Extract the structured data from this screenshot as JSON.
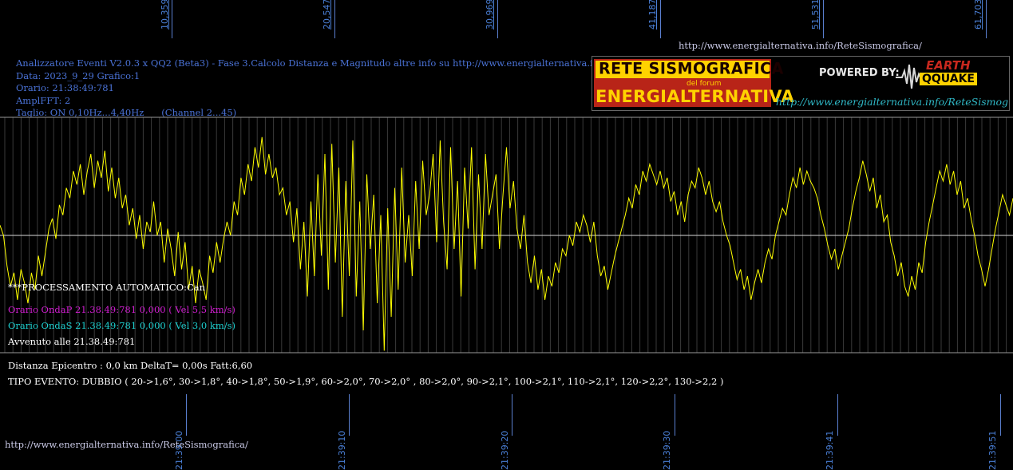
{
  "header": {
    "url_top": "http://www.energialternativa.info/ReteSismografica/",
    "info_lines": [
      "Analizzatore Eventi V2.0.3 x QQ2 (Beta3) - Fase 3.Calcolo Distanza e Magnitudo altre info su http://www.energialternativa.info/ReteSism",
      "Data: 2023_9_29 Grafico:1",
      "Orario: 21:38:49:781",
      "AmplFFT: 2",
      "Taglio: ON 0,10Hz...4,40Hz      (Channel 2...45)"
    ]
  },
  "logo": {
    "line1": "RETE SISMOGRAFICA",
    "line2": "del forum",
    "line3": "ENERGIALTERNATIVA",
    "powered": "POWERED BY:",
    "brand_top": "EARTH",
    "brand_bottom": "QQUAKE",
    "url": "http://www.energialternativa.info/ReteSismografica"
  },
  "processing": {
    "title": "***PROCESSAMENTO AUTOMATICO:Can",
    "onda_p": "Orario OndaP 21.38.49:781  0,000 ( Vel 5,5 km/s)",
    "onda_s": "Orario OndaS 21.38.49:781  0,000 ( Vel 3,0 km/s)",
    "avvenuto": "Avvenuto alle 21.38.49:781",
    "distanza": "Distanza Epicentro : 0,0 km DeltaT= 0,00s  Fatt:6,60",
    "tipo": "TIPO EVENTO: DUBBIO ( 20->1,6°, 30->1,8°, 40->1,8°, 50->1,9°, 60->2,0°, 70->2,0° , 80->2,0°, 90->2,1°, 100->2,1°, 110->2,1°, 120->2,2°, 130->2,2 )"
  },
  "footer_url": "http://www.energialternativa.info/ReteSismografica/",
  "colors": {
    "background": "#000000",
    "trace": "#ffff00",
    "grid": "#7f7f7f",
    "info_text": "#4a72d6",
    "onda_p": "#d21ed2",
    "onda_s": "#1ecfcf",
    "logo_red": "#c8281e",
    "logo_yellow": "#ffd200",
    "logo_url": "#2fb8c6"
  },
  "chart_data": {
    "type": "line",
    "top_axis_labels": [
      "10,359s",
      "20,547s",
      "30,969s",
      "41,187s",
      "51,531s",
      "61,703s"
    ],
    "bottom_axis_labels": [
      "21:39:00",
      "21:39:10",
      "21:39:20",
      "21:39:30",
      "21:39:41",
      "21:39:51"
    ],
    "grid": true,
    "series": [
      {
        "values": [
          0.15,
          0.0,
          -0.45,
          -0.75,
          -0.55,
          -0.95,
          -0.5,
          -0.7,
          -1.0,
          -0.55,
          -0.8,
          -0.3,
          -0.6,
          -0.25,
          0.1,
          0.25,
          -0.05,
          0.45,
          0.3,
          0.7,
          0.55,
          0.95,
          0.75,
          1.05,
          0.6,
          0.95,
          1.2,
          0.7,
          1.1,
          0.85,
          1.25,
          0.65,
          1.0,
          0.55,
          0.85,
          0.4,
          0.6,
          0.15,
          0.4,
          -0.05,
          0.3,
          -0.2,
          0.2,
          0.05,
          0.5,
          0.0,
          0.2,
          -0.4,
          0.1,
          -0.2,
          -0.6,
          0.05,
          -0.5,
          -0.1,
          -0.8,
          -0.45,
          -1.0,
          -0.5,
          -0.7,
          -0.95,
          -0.3,
          -0.55,
          -0.1,
          -0.4,
          -0.05,
          0.2,
          0.0,
          0.5,
          0.3,
          0.85,
          0.6,
          1.05,
          0.8,
          1.3,
          1.0,
          1.45,
          0.9,
          1.2,
          0.85,
          1.0,
          0.6,
          0.7,
          0.3,
          0.5,
          -0.1,
          0.4,
          -0.5,
          0.2,
          -0.9,
          0.5,
          -0.6,
          0.9,
          -0.3,
          1.2,
          -0.8,
          1.35,
          -0.4,
          1.0,
          -1.2,
          0.8,
          -0.6,
          1.4,
          -0.9,
          0.5,
          -1.4,
          0.9,
          -0.2,
          0.6,
          -1.0,
          0.3,
          -1.7,
          0.4,
          -1.2,
          0.7,
          -0.8,
          1.0,
          -0.4,
          0.3,
          -0.6,
          0.8,
          -0.2,
          1.1,
          0.3,
          0.6,
          1.2,
          -0.1,
          1.4,
          0.2,
          -0.5,
          1.3,
          -0.2,
          0.8,
          -0.9,
          1.0,
          0.1,
          1.3,
          -0.5,
          0.9,
          -0.2,
          1.2,
          0.3,
          0.6,
          0.9,
          -0.2,
          0.6,
          1.3,
          0.4,
          0.8,
          0.1,
          -0.2,
          0.3,
          -0.4,
          -0.7,
          -0.3,
          -0.8,
          -0.5,
          -0.95,
          -0.6,
          -0.75,
          -0.4,
          -0.55,
          -0.2,
          -0.3,
          0.0,
          -0.15,
          0.2,
          0.05,
          0.3,
          0.15,
          -0.1,
          0.2,
          -0.3,
          -0.6,
          -0.45,
          -0.8,
          -0.55,
          -0.3,
          -0.1,
          0.1,
          0.3,
          0.55,
          0.4,
          0.75,
          0.6,
          0.95,
          0.8,
          1.05,
          0.9,
          0.75,
          0.95,
          0.7,
          0.85,
          0.5,
          0.65,
          0.3,
          0.5,
          0.2,
          0.6,
          0.8,
          0.7,
          1.0,
          0.85,
          0.6,
          0.8,
          0.5,
          0.35,
          0.5,
          0.2,
          0.0,
          -0.15,
          -0.4,
          -0.65,
          -0.5,
          -0.8,
          -0.6,
          -0.95,
          -0.7,
          -0.5,
          -0.7,
          -0.4,
          -0.2,
          -0.35,
          0.0,
          0.2,
          0.4,
          0.3,
          0.6,
          0.85,
          0.7,
          1.0,
          0.75,
          0.95,
          0.8,
          0.7,
          0.55,
          0.3,
          0.1,
          -0.15,
          -0.35,
          -0.2,
          -0.5,
          -0.3,
          -0.1,
          0.1,
          0.4,
          0.65,
          0.85,
          1.1,
          0.9,
          0.65,
          0.85,
          0.4,
          0.6,
          0.2,
          0.3,
          -0.1,
          -0.3,
          -0.6,
          -0.4,
          -0.75,
          -0.9,
          -0.6,
          -0.8,
          -0.4,
          -0.55,
          -0.1,
          0.2,
          0.45,
          0.7,
          0.95,
          0.8,
          1.05,
          0.75,
          0.95,
          0.6,
          0.8,
          0.4,
          0.55,
          0.25,
          0.0,
          -0.3,
          -0.5,
          -0.75,
          -0.5,
          -0.2,
          0.1,
          0.35,
          0.6,
          0.45,
          0.3,
          0.55
        ]
      }
    ]
  }
}
